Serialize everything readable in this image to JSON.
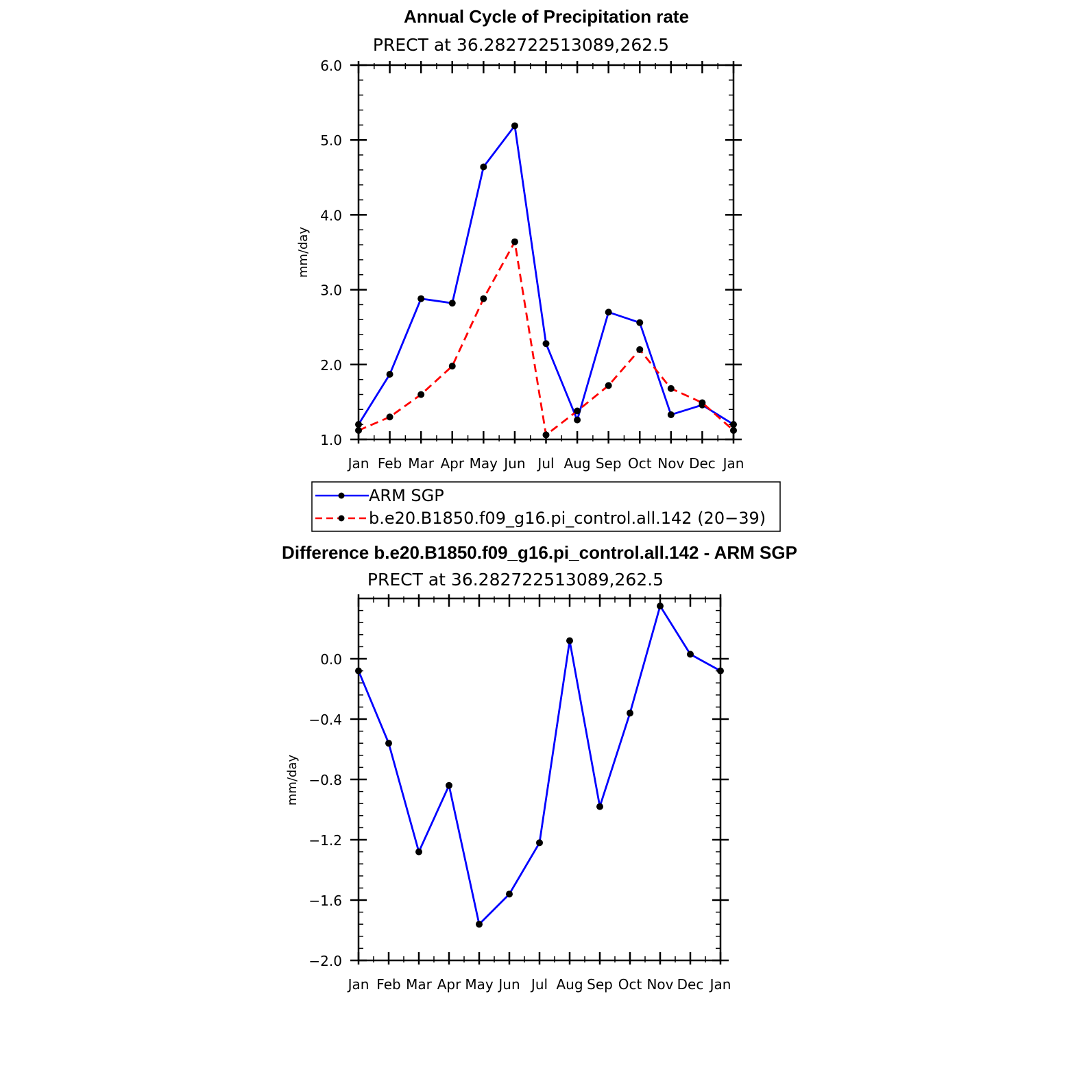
{
  "chart_data": [
    {
      "type": "line",
      "title": "Annual Cycle of Precipitation rate",
      "subtitle": "PRECT at 36.282722513089,262.5",
      "ylabel": "mm/day",
      "xlabel": "",
      "categories": [
        "Jan",
        "Feb",
        "Mar",
        "Apr",
        "May",
        "Jun",
        "Jul",
        "Aug",
        "Sep",
        "Oct",
        "Nov",
        "Dec",
        "Jan"
      ],
      "ylim": [
        1.0,
        6.0
      ],
      "yticks": [
        "1.0",
        "2.0",
        "3.0",
        "4.0",
        "5.0",
        "6.0"
      ],
      "grid": false,
      "legend_position": "bottom",
      "series": [
        {
          "name": "ARM SGP",
          "color": "#0000ff",
          "style": "solid",
          "marker": "dot",
          "values": [
            1.2,
            1.87,
            2.88,
            2.82,
            4.64,
            5.19,
            2.28,
            1.26,
            2.7,
            2.56,
            1.33,
            1.46,
            1.2
          ]
        },
        {
          "name": "b.e20.B1850.f09_g16.pi_control.all.142 (20−39)",
          "color": "#ff0000",
          "style": "dashed",
          "marker": "dot",
          "values": [
            1.12,
            1.3,
            1.6,
            1.98,
            2.88,
            3.64,
            1.06,
            1.38,
            1.72,
            2.2,
            1.68,
            1.49,
            1.12
          ]
        }
      ]
    },
    {
      "type": "line",
      "title": "Difference b.e20.B1850.f09_g16.pi_control.all.142 - ARM SGP",
      "subtitle": "PRECT at 36.282722513089,262.5",
      "ylabel": "mm/day",
      "xlabel": "",
      "categories": [
        "Jan",
        "Feb",
        "Mar",
        "Apr",
        "May",
        "Jun",
        "Jul",
        "Aug",
        "Sep",
        "Oct",
        "Nov",
        "Dec",
        "Jan"
      ],
      "ylim": [
        -2.0,
        0.4
      ],
      "yticks": [
        "−2.0",
        "−1.6",
        "−1.2",
        "−0.8",
        "−0.4",
        "0.0"
      ],
      "grid": false,
      "series": [
        {
          "color": "#0000ff",
          "style": "solid",
          "marker": "dot",
          "values": [
            -0.08,
            -0.56,
            -1.28,
            -0.84,
            -1.76,
            -1.56,
            -1.22,
            0.12,
            -0.98,
            -0.36,
            0.35,
            0.03,
            -0.08
          ]
        }
      ]
    }
  ]
}
